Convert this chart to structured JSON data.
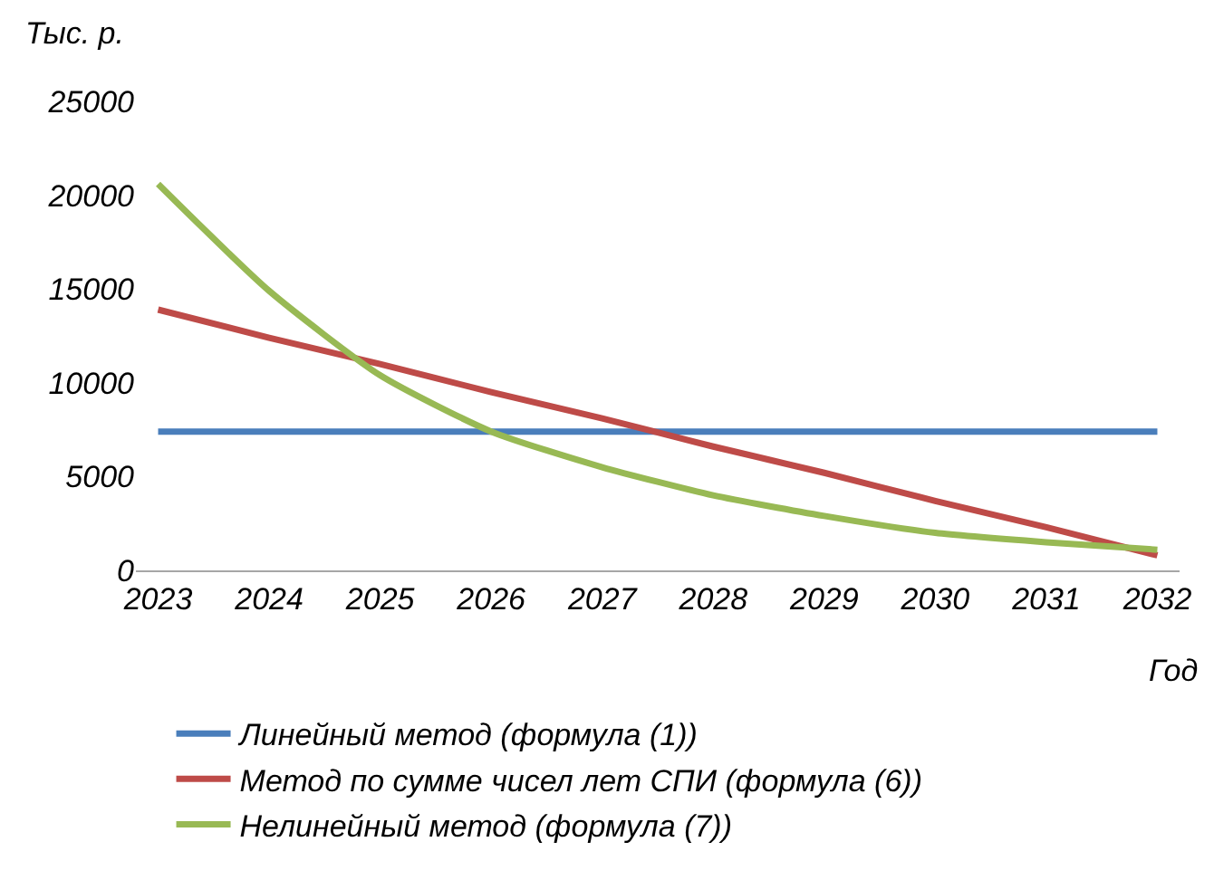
{
  "chart_data": {
    "type": "line",
    "xlabel": "Год",
    "ylabel": "Тыс. р.",
    "categories": [
      "2023",
      "2024",
      "2025",
      "2026",
      "2027",
      "2028",
      "2029",
      "2030",
      "2031",
      "2032"
    ],
    "series": [
      {
        "name": "Линейный метод (формула (1))",
        "color": "#4a7ebb",
        "values": [
          7400,
          7400,
          7400,
          7400,
          7400,
          7400,
          7400,
          7400,
          7400,
          7400
        ]
      },
      {
        "name": "Метод по сумме чисел лет СПИ (формула (6))",
        "color": "#be4b48",
        "values": [
          13900,
          12400,
          11000,
          9500,
          8100,
          6600,
          5200,
          3700,
          2300,
          800
        ]
      },
      {
        "name": "Нелинейный метод (формула (7))",
        "color": "#98b954",
        "values": [
          20600,
          14900,
          10400,
          7400,
          5500,
          4000,
          2900,
          2000,
          1500,
          1100
        ]
      }
    ],
    "ylim": [
      0,
      25000
    ],
    "yticks": [
      0,
      5000,
      10000,
      15000,
      20000,
      25000
    ],
    "legend": "bottom",
    "marker": "none",
    "line_style": "solid"
  }
}
